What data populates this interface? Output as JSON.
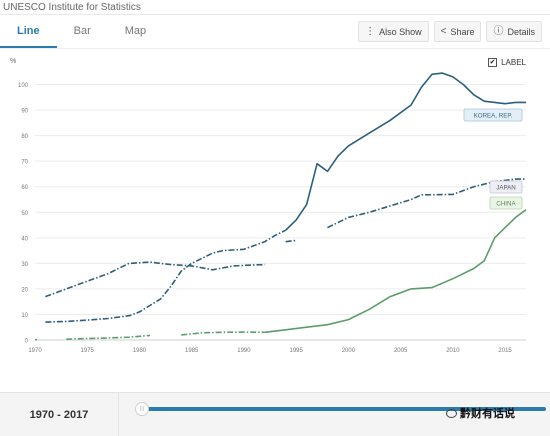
{
  "header": {
    "title": "UNESCO Institute for Statistics"
  },
  "tabs": [
    {
      "label": "Line",
      "active": true
    },
    {
      "label": "Bar",
      "active": false
    },
    {
      "label": "Map",
      "active": false
    }
  ],
  "actions": {
    "also_show": "Also Show",
    "share": "Share",
    "details": "Details"
  },
  "label_toggle": {
    "label": "LABEL",
    "checked": true
  },
  "range": {
    "text": "1970 - 2017"
  },
  "watermark": {
    "text": "黔财有话说"
  },
  "chart_data": {
    "type": "line",
    "ylabel": "%",
    "xlim": [
      1970,
      2017
    ],
    "ylim": [
      0,
      110
    ],
    "x_ticks": [
      1970,
      1975,
      1980,
      1985,
      1990,
      1995,
      2000,
      2005,
      2010,
      2015
    ],
    "y_ticks": [
      0,
      10,
      20,
      30,
      40,
      50,
      60,
      70,
      80,
      90,
      100
    ],
    "grid": "horizontal",
    "colors": {
      "korea": "#2c5f7d",
      "japan": "#2e5f78",
      "china": "#5c9d6a"
    },
    "series": [
      {
        "name": "KOREA, REP.",
        "key": "korea",
        "segments": [
          {
            "style": "dash",
            "points": [
              [
                1971,
                7
              ],
              [
                1973,
                7.3
              ],
              [
                1975,
                7.8
              ],
              [
                1977,
                8.4
              ],
              [
                1979,
                9.5
              ],
              [
                1980,
                11
              ],
              [
                1981,
                13.5
              ],
              [
                1982,
                16
              ],
              [
                1983,
                21
              ],
              [
                1984,
                27
              ],
              [
                1985,
                30
              ],
              [
                1986,
                32
              ],
              [
                1987,
                34
              ],
              [
                1988,
                35
              ],
              [
                1990,
                35.5
              ],
              [
                1991,
                37
              ],
              [
                1992,
                38.5
              ],
              [
                1993,
                41
              ],
              [
                1994,
                43
              ]
            ]
          },
          {
            "style": "solid",
            "points": [
              [
                1994,
                43
              ],
              [
                1995,
                47
              ],
              [
                1996,
                53
              ],
              [
                1997,
                69
              ],
              [
                1998,
                66
              ],
              [
                1999,
                72
              ],
              [
                2000,
                76
              ],
              [
                2002,
                81
              ],
              [
                2004,
                86
              ],
              [
                2006,
                92
              ],
              [
                2007,
                99
              ],
              [
                2008,
                104
              ],
              [
                2009,
                104.5
              ],
              [
                2010,
                103
              ],
              [
                2011,
                100
              ],
              [
                2012,
                96
              ],
              [
                2013,
                93.5
              ],
              [
                2014,
                93
              ],
              [
                2015,
                92.5
              ],
              [
                2016,
                93
              ],
              [
                2017,
                93
              ]
            ]
          }
        ]
      },
      {
        "name": "JAPAN",
        "key": "japan",
        "segments": [
          {
            "style": "dash",
            "points": [
              [
                1971,
                17
              ],
              [
                1973,
                20
              ],
              [
                1975,
                23
              ],
              [
                1977,
                26
              ],
              [
                1979,
                30
              ],
              [
                1981,
                30.5
              ],
              [
                1983,
                29.5
              ],
              [
                1985,
                29
              ],
              [
                1987,
                27.5
              ],
              [
                1989,
                29
              ],
              [
                1991,
                29.4
              ],
              [
                1992,
                29.5
              ]
            ]
          },
          {
            "style": "dash",
            "points": [
              [
                1994,
                38.5
              ],
              [
                1995,
                39
              ]
            ]
          },
          {
            "style": "dash",
            "points": [
              [
                1998,
                44
              ],
              [
                2000,
                48
              ],
              [
                2002,
                50
              ],
              [
                2004,
                52.5
              ],
              [
                2006,
                55
              ],
              [
                2007,
                56.8
              ],
              [
                2010,
                57
              ],
              [
                2012,
                60
              ],
              [
                2014,
                62
              ],
              [
                2016,
                63
              ],
              [
                2017,
                63
              ]
            ]
          }
        ]
      },
      {
        "name": "CHINA",
        "key": "china",
        "segments": [
          {
            "style": "dash",
            "points": [
              [
                1970,
                0.1
              ],
              [
                1970.2,
                0.1
              ]
            ]
          },
          {
            "style": "dash",
            "points": [
              [
                1973,
                0.3
              ],
              [
                1975,
                0.6
              ],
              [
                1977,
                0.8
              ],
              [
                1979,
                1.1
              ],
              [
                1981,
                1.8
              ]
            ]
          },
          {
            "style": "dash",
            "points": [
              [
                1984,
                2
              ],
              [
                1986,
                2.8
              ],
              [
                1988,
                3
              ],
              [
                1990,
                3.1
              ],
              [
                1992,
                3
              ]
            ]
          },
          {
            "style": "solid",
            "points": [
              [
                1992,
                3
              ],
              [
                1994,
                4
              ],
              [
                1996,
                5
              ],
              [
                1998,
                6
              ],
              [
                2000,
                8
              ],
              [
                2002,
                12
              ],
              [
                2004,
                17
              ],
              [
                2006,
                20
              ],
              [
                2008,
                20.5
              ],
              [
                2010,
                24
              ],
              [
                2012,
                28
              ],
              [
                2013,
                31
              ],
              [
                2014,
                40
              ],
              [
                2015,
                44
              ],
              [
                2016,
                48
              ],
              [
                2017,
                51
              ]
            ]
          }
        ]
      }
    ]
  }
}
